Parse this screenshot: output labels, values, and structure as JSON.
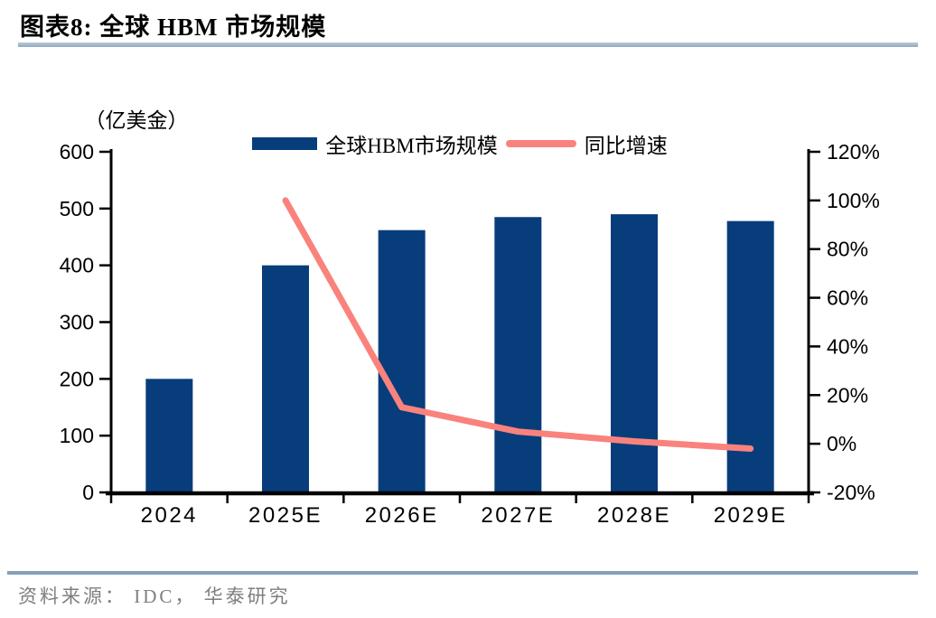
{
  "header": {
    "title": "图表8:  全球 HBM 市场规模"
  },
  "chart_data": {
    "type": "bar",
    "title": "全球 HBM 市场规模",
    "categories": [
      "2024",
      "2025E",
      "2026E",
      "2027E",
      "2028E",
      "2029E"
    ],
    "series": [
      {
        "name": "全球HBM市场规模",
        "type": "bar",
        "axis": "left",
        "unit": "亿美金",
        "values": [
          200,
          400,
          462,
          485,
          490,
          478
        ]
      },
      {
        "name": "同比增速",
        "type": "line",
        "axis": "right",
        "unit": "%",
        "values": [
          null,
          100,
          15,
          5,
          1,
          -2
        ]
      }
    ],
    "left_axis": {
      "title": "（亿美金）",
      "min": 0,
      "max": 600,
      "step": 100,
      "tick_labels": [
        "0",
        "100",
        "200",
        "300",
        "400",
        "500",
        "600"
      ]
    },
    "right_axis": {
      "title": "",
      "min": -20,
      "max": 120,
      "step": 20,
      "tick_labels": [
        "-20%",
        "0%",
        "20%",
        "40%",
        "60%",
        "80%",
        "100%",
        "120%"
      ]
    },
    "legend": [
      "全球HBM市场规模",
      "同比增速"
    ],
    "legend_position": "top-center",
    "grid": false,
    "colors": {
      "bar": "#083d7c",
      "line": "#fa827d",
      "axis": "#000000"
    }
  },
  "footer": {
    "source": "资料来源： IDC， 华泰研究"
  }
}
